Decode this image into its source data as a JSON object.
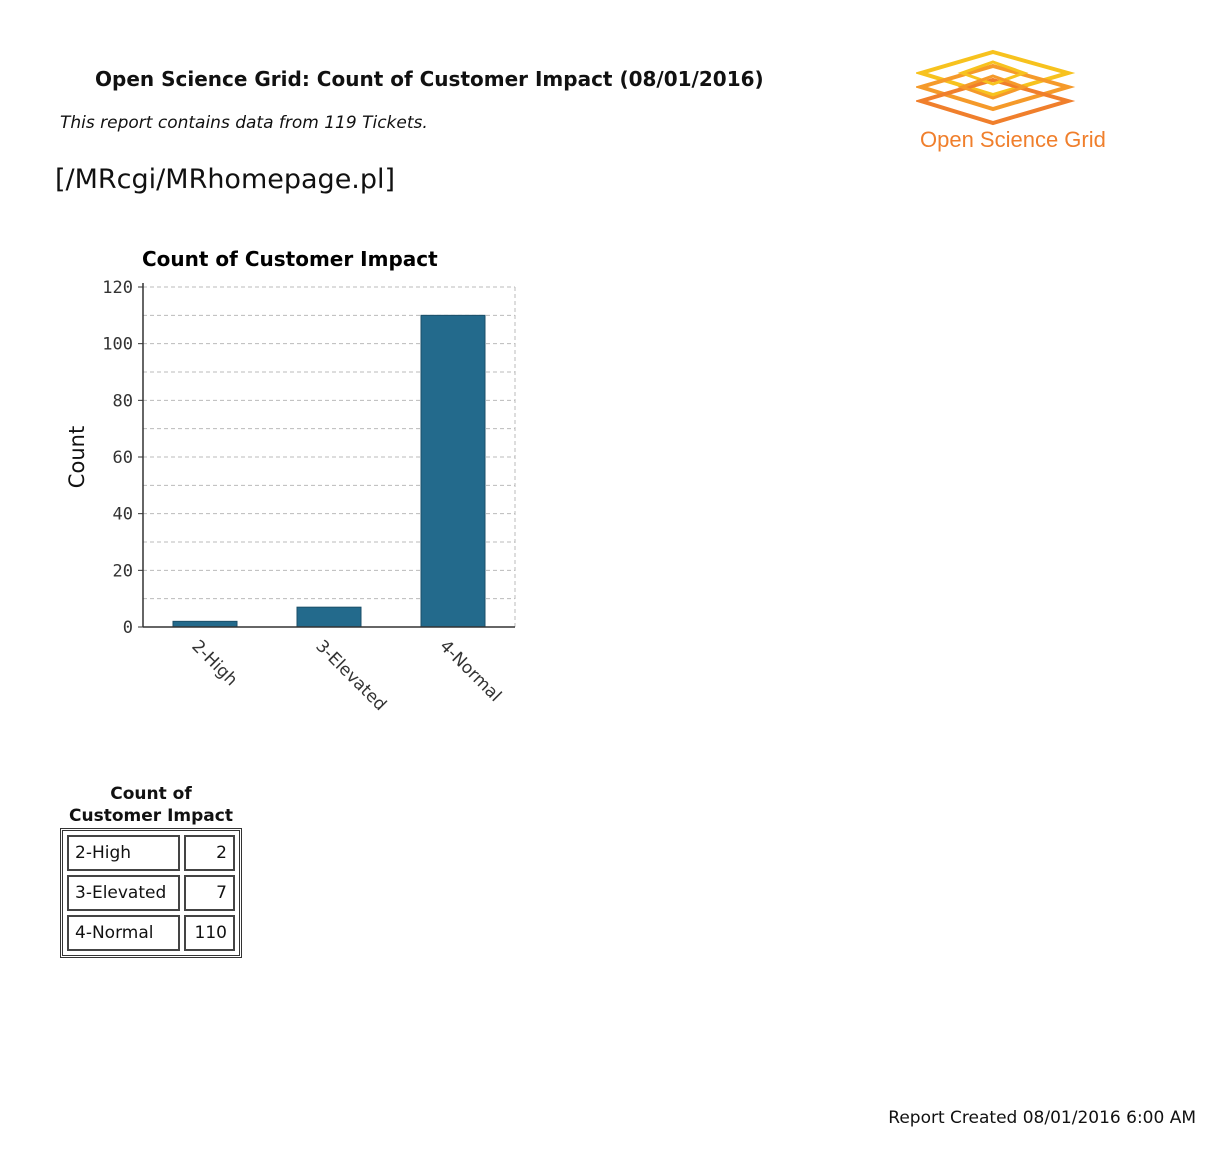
{
  "header": {
    "title": "Open Science Grid: Count of Customer Impact (08/01/2016)",
    "subtitle": "This report contains data from 119 Tickets.",
    "homepage_link": "[/MRcgi/MRhomepage.pl]",
    "logo_text": "Open Science Grid"
  },
  "chart_data": {
    "type": "bar",
    "title": "Count of Customer Impact",
    "xlabel": "",
    "ylabel": "Count",
    "categories": [
      "2-High",
      "3-Elevated",
      "4-Normal"
    ],
    "values": [
      2,
      7,
      110
    ],
    "ylim": [
      0,
      120
    ],
    "yticks": [
      0,
      20,
      40,
      60,
      80,
      100,
      120
    ],
    "grid": true,
    "bar_color": "#236a8c"
  },
  "table": {
    "caption_line1": "Count of",
    "caption_line2": "Customer Impact",
    "rows": [
      {
        "label": "2-High",
        "value": "2"
      },
      {
        "label": "3-Elevated",
        "value": "7"
      },
      {
        "label": "4-Normal",
        "value": "110"
      }
    ]
  },
  "footer": {
    "created": "Report Created 08/01/2016 6:00 AM"
  },
  "colors": {
    "logo_orange": "#f07f2c",
    "logo_yellow": "#f7c21e"
  }
}
